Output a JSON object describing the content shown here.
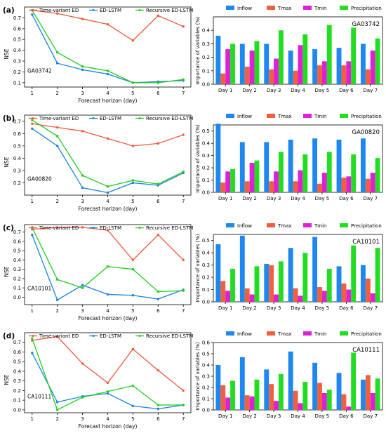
{
  "colors": {
    "time_variant_ed": "#f05a3c",
    "ed_lstm": "#1a82e0",
    "recursive_ed_lstm": "#1fcc1f",
    "inflow": "#1e88f0",
    "tmax": "#f0603c",
    "tmin": "#e020d8",
    "precipitation": "#22dd22"
  },
  "chart_data": [
    {
      "type": "line",
      "panel": "(a)",
      "annotation": "GA03742",
      "xlabel": "Forecast horizon (day)",
      "ylabel": "NSE",
      "x": [
        1,
        2,
        3,
        4,
        5,
        6,
        7
      ],
      "xlim": [
        0.7,
        7.3
      ],
      "ylim": [
        0.06,
        0.8
      ],
      "yticks": [
        "0.1",
        "0.2",
        "0.3",
        "0.4",
        "0.5",
        "0.6",
        "0.7"
      ],
      "ytick_values": [
        0.1,
        0.2,
        0.3,
        0.4,
        0.5,
        0.6,
        0.7
      ],
      "legend": "top",
      "series": [
        {
          "name": "Time-variant ED",
          "color": "#f05a3c",
          "values": [
            0.77,
            0.74,
            0.69,
            0.64,
            0.49,
            0.72,
            0.62
          ]
        },
        {
          "name": "ED-LSTM",
          "color": "#1a82e0",
          "values": [
            0.73,
            0.28,
            0.22,
            0.18,
            0.1,
            0.11,
            0.12
          ]
        },
        {
          "name": "Recursive ED-LSTM",
          "color": "#1fcc1f",
          "values": [
            0.77,
            0.38,
            0.25,
            0.21,
            0.1,
            0.1,
            0.13
          ]
        }
      ]
    },
    {
      "type": "bar",
      "annotation": "GA03742",
      "ylabel": "Importance of variables (%)",
      "categories": [
        "Day 1",
        "Day 2",
        "Day 3",
        "Day 4",
        "Day 5",
        "Day 6",
        "Day 7"
      ],
      "ylim": [
        0,
        0.5
      ],
      "yticks": [
        "0.0",
        "0.1",
        "0.2",
        "0.3",
        "0.4"
      ],
      "ytick_values": [
        0,
        0.1,
        0.2,
        0.3,
        0.4
      ],
      "legend": "top",
      "series": [
        {
          "name": "Inflow",
          "color": "#1e88f0",
          "values": [
            0.36,
            0.3,
            0.3,
            0.25,
            0.26,
            0.27,
            0.3
          ]
        },
        {
          "name": "Tmax",
          "color": "#f0603c",
          "values": [
            0.08,
            0.13,
            0.11,
            0.1,
            0.14,
            0.14,
            0.11
          ]
        },
        {
          "name": "Tmin",
          "color": "#e020d8",
          "values": [
            0.26,
            0.25,
            0.19,
            0.29,
            0.17,
            0.17,
            0.25
          ]
        },
        {
          "name": "Precipitation",
          "color": "#22dd22",
          "values": [
            0.3,
            0.32,
            0.4,
            0.37,
            0.44,
            0.42,
            0.34
          ]
        }
      ]
    },
    {
      "type": "line",
      "panel": "(b)",
      "annotation": "GA00820",
      "xlabel": "Forecast horizon (day)",
      "ylabel": "NSE",
      "x": [
        1,
        2,
        3,
        4,
        5,
        6,
        7
      ],
      "xlim": [
        0.7,
        7.3
      ],
      "ylim": [
        0.1,
        0.75
      ],
      "yticks": [
        "0.2",
        "0.3",
        "0.4",
        "0.5",
        "0.6",
        "0.7"
      ],
      "ytick_values": [
        0.2,
        0.3,
        0.4,
        0.5,
        0.6,
        0.7
      ],
      "legend": "top",
      "series": [
        {
          "name": "Time-variant ED",
          "color": "#f05a3c",
          "values": [
            0.68,
            0.65,
            0.62,
            0.56,
            0.5,
            0.52,
            0.59
          ]
        },
        {
          "name": "ED-LSTM",
          "color": "#1a82e0",
          "values": [
            0.64,
            0.5,
            0.16,
            0.12,
            0.2,
            0.18,
            0.28
          ]
        },
        {
          "name": "Recursive ED-LSTM",
          "color": "#1fcc1f",
          "values": [
            0.71,
            0.58,
            0.26,
            0.17,
            0.22,
            0.19,
            0.29
          ]
        }
      ]
    },
    {
      "type": "bar",
      "annotation": "GA00820",
      "ylabel": "Importance of variables (%)",
      "categories": [
        "Day 1",
        "Day 2",
        "Day 3",
        "Day 4",
        "Day 5",
        "Day 6",
        "Day 7"
      ],
      "ylim": [
        0,
        0.55
      ],
      "yticks": [
        "0.0",
        "0.1",
        "0.2",
        "0.3",
        "0.4",
        "0.5"
      ],
      "ytick_values": [
        0,
        0.1,
        0.2,
        0.3,
        0.4,
        0.5
      ],
      "legend": "top",
      "series": [
        {
          "name": "Inflow",
          "color": "#1e88f0",
          "values": [
            0.56,
            0.41,
            0.41,
            0.43,
            0.44,
            0.43,
            0.44
          ]
        },
        {
          "name": "Tmax",
          "color": "#f0603c",
          "values": [
            0.08,
            0.09,
            0.09,
            0.09,
            0.07,
            0.12,
            0.11
          ]
        },
        {
          "name": "Tmin",
          "color": "#e020d8",
          "values": [
            0.17,
            0.24,
            0.17,
            0.18,
            0.16,
            0.13,
            0.16
          ]
        },
        {
          "name": "Precipitation",
          "color": "#22dd22",
          "values": [
            0.19,
            0.26,
            0.33,
            0.31,
            0.33,
            0.31,
            0.28
          ]
        }
      ]
    },
    {
      "type": "line",
      "panel": "(c)",
      "annotation": "CA10101",
      "xlabel": "Forecast horizon (day)",
      "ylabel": "NSE",
      "x": [
        1,
        2,
        3,
        4,
        5,
        6,
        7
      ],
      "xlim": [
        0.7,
        7.3
      ],
      "ylim": [
        -0.08,
        0.78
      ],
      "yticks": [
        "0.0",
        "0.1",
        "0.2",
        "0.3",
        "0.4",
        "0.5",
        "0.6",
        "0.7"
      ],
      "ytick_values": [
        0,
        0.1,
        0.2,
        0.3,
        0.4,
        0.5,
        0.6,
        0.7
      ],
      "legend": "top",
      "series": [
        {
          "name": "Time-variant ED",
          "color": "#f05a3c",
          "values": [
            0.73,
            0.75,
            0.75,
            0.72,
            0.4,
            0.67,
            0.4
          ]
        },
        {
          "name": "ED-LSTM",
          "color": "#1a82e0",
          "values": [
            0.67,
            -0.03,
            0.13,
            0.03,
            0.02,
            -0.02,
            0.08
          ]
        },
        {
          "name": "Recursive ED-LSTM",
          "color": "#1fcc1f",
          "values": [
            0.75,
            0.19,
            0.1,
            0.33,
            0.3,
            0.06,
            0.07
          ]
        }
      ]
    },
    {
      "type": "bar",
      "annotation": "CA10101",
      "ylabel": "Importance of variables (%)",
      "categories": [
        "Day 1",
        "Day 2",
        "Day 3",
        "Day 4",
        "Day 5",
        "Day 6",
        "Day 7"
      ],
      "ylim": [
        0,
        0.55
      ],
      "yticks": [
        "0.0",
        "0.1",
        "0.2",
        "0.3",
        "0.4",
        "0.5"
      ],
      "ytick_values": [
        0,
        0.1,
        0.2,
        0.3,
        0.4,
        0.5
      ],
      "legend": "top",
      "series": [
        {
          "name": "Inflow",
          "color": "#1e88f0",
          "values": [
            0.47,
            0.54,
            0.31,
            0.44,
            0.53,
            0.29,
            0.3
          ]
        },
        {
          "name": "Tmax",
          "color": "#f0603c",
          "values": [
            0.17,
            0.11,
            0.3,
            0.11,
            0.12,
            0.15,
            0.19
          ]
        },
        {
          "name": "Tmin",
          "color": "#e020d8",
          "values": [
            0.09,
            0.06,
            0.06,
            0.05,
            0.09,
            0.1,
            0.07
          ]
        },
        {
          "name": "Precipitation",
          "color": "#22dd22",
          "values": [
            0.27,
            0.29,
            0.33,
            0.4,
            0.27,
            0.46,
            0.44
          ]
        }
      ]
    },
    {
      "type": "line",
      "panel": "(d)",
      "annotation": "CA10111",
      "xlabel": "Forecast horizon (day)",
      "ylabel": "NSE",
      "x": [
        1,
        2,
        3,
        4,
        5,
        6,
        7
      ],
      "xlim": [
        0.7,
        7.3
      ],
      "ylim": [
        -0.03,
        0.8
      ],
      "yticks": [
        "0.0",
        "0.1",
        "0.2",
        "0.3",
        "0.4",
        "0.5",
        "0.6",
        "0.7"
      ],
      "ytick_values": [
        0,
        0.1,
        0.2,
        0.3,
        0.4,
        0.5,
        0.6,
        0.7
      ],
      "legend": "top",
      "series": [
        {
          "name": "Time-variant ED",
          "color": "#f05a3c",
          "values": [
            0.72,
            0.76,
            0.48,
            0.28,
            0.63,
            0.41,
            0.2
          ]
        },
        {
          "name": "ED-LSTM",
          "color": "#1a82e0",
          "values": [
            0.59,
            0.08,
            0.14,
            0.17,
            0.04,
            0.01,
            0.05
          ]
        },
        {
          "name": "Recursive ED-LSTM",
          "color": "#1fcc1f",
          "values": [
            0.74,
            0.0,
            0.13,
            0.19,
            0.25,
            0.05,
            0.05
          ]
        }
      ]
    },
    {
      "type": "bar",
      "annotation": "CA10111",
      "ylabel": "Importance of variables (%)",
      "categories": [
        "Day 1",
        "Day 2",
        "Day 3",
        "Day 4",
        "Day 5",
        "Day 6",
        "Day 7"
      ],
      "ylim": [
        0,
        0.6
      ],
      "yticks": [
        "0.0",
        "0.1",
        "0.2",
        "0.3",
        "0.4",
        "0.5",
        "0.6"
      ],
      "ytick_values": [
        0,
        0.1,
        0.2,
        0.3,
        0.4,
        0.5,
        0.6
      ],
      "legend": "top",
      "series": [
        {
          "name": "Inflow",
          "color": "#1e88f0",
          "values": [
            0.4,
            0.47,
            0.36,
            0.52,
            0.42,
            0.33,
            0.27
          ]
        },
        {
          "name": "Tmax",
          "color": "#f0603c",
          "values": [
            0.22,
            0.13,
            0.23,
            0.17,
            0.24,
            0.14,
            0.31
          ]
        },
        {
          "name": "Tmin",
          "color": "#e020d8",
          "values": [
            0.11,
            0.12,
            0.08,
            0.06,
            0.15,
            0.03,
            0.15
          ]
        },
        {
          "name": "Precipitation",
          "color": "#22dd22",
          "values": [
            0.26,
            0.27,
            0.32,
            0.25,
            0.18,
            0.51,
            0.28
          ]
        }
      ]
    }
  ]
}
